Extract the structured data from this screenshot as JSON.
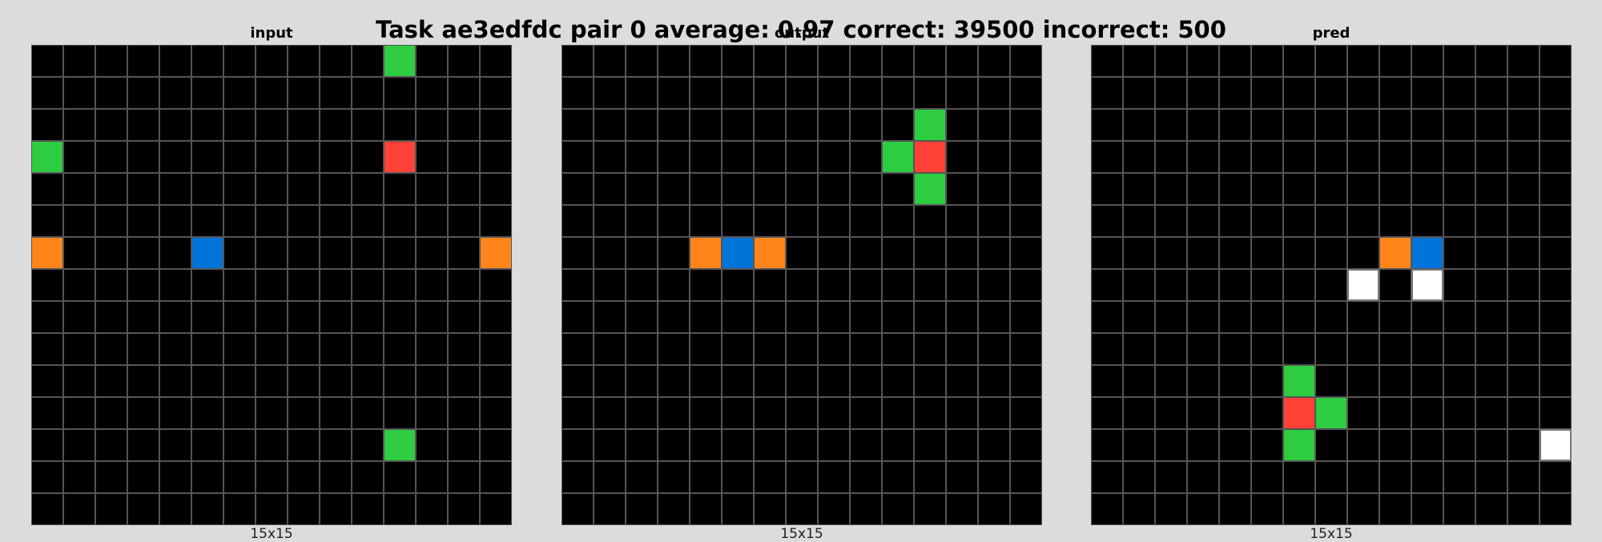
{
  "title": "Task ae3edfdc pair 0 average: 0.97 correct: 39500 incorrect: 500",
  "palette": {
    "0": "#000000",
    "1": "#0074D9",
    "2": "#FF4136",
    "3": "#2ECC40",
    "4": "#FFDC00",
    "5": "#AAAAAA",
    "6": "#F012BE",
    "7": "#FF851B",
    "8": "#7FDBFF",
    "9": "#870C25",
    "w": "#FFFFFF"
  },
  "panels": [
    {
      "key": "input",
      "label": "input",
      "size_label": "15x15",
      "grid": [
        [
          0,
          0,
          0,
          0,
          0,
          0,
          0,
          0,
          0,
          0,
          0,
          3,
          0,
          0,
          0
        ],
        [
          0,
          0,
          0,
          0,
          0,
          0,
          0,
          0,
          0,
          0,
          0,
          0,
          0,
          0,
          0
        ],
        [
          0,
          0,
          0,
          0,
          0,
          0,
          0,
          0,
          0,
          0,
          0,
          0,
          0,
          0,
          0
        ],
        [
          3,
          0,
          0,
          0,
          0,
          0,
          0,
          0,
          0,
          0,
          0,
          2,
          0,
          0,
          0
        ],
        [
          0,
          0,
          0,
          0,
          0,
          0,
          0,
          0,
          0,
          0,
          0,
          0,
          0,
          0,
          0
        ],
        [
          0,
          0,
          0,
          0,
          0,
          0,
          0,
          0,
          0,
          0,
          0,
          0,
          0,
          0,
          0
        ],
        [
          7,
          0,
          0,
          0,
          0,
          1,
          0,
          0,
          0,
          0,
          0,
          0,
          0,
          0,
          7
        ],
        [
          0,
          0,
          0,
          0,
          0,
          0,
          0,
          0,
          0,
          0,
          0,
          0,
          0,
          0,
          0
        ],
        [
          0,
          0,
          0,
          0,
          0,
          0,
          0,
          0,
          0,
          0,
          0,
          0,
          0,
          0,
          0
        ],
        [
          0,
          0,
          0,
          0,
          0,
          0,
          0,
          0,
          0,
          0,
          0,
          0,
          0,
          0,
          0
        ],
        [
          0,
          0,
          0,
          0,
          0,
          0,
          0,
          0,
          0,
          0,
          0,
          0,
          0,
          0,
          0
        ],
        [
          0,
          0,
          0,
          0,
          0,
          0,
          0,
          0,
          0,
          0,
          0,
          0,
          0,
          0,
          0
        ],
        [
          0,
          0,
          0,
          0,
          0,
          0,
          0,
          0,
          0,
          0,
          0,
          3,
          0,
          0,
          0
        ],
        [
          0,
          0,
          0,
          0,
          0,
          0,
          0,
          0,
          0,
          0,
          0,
          0,
          0,
          0,
          0
        ],
        [
          0,
          0,
          0,
          0,
          0,
          0,
          0,
          0,
          0,
          0,
          0,
          0,
          0,
          0,
          0
        ]
      ]
    },
    {
      "key": "output",
      "label": "output",
      "size_label": "15x15",
      "grid": [
        [
          0,
          0,
          0,
          0,
          0,
          0,
          0,
          0,
          0,
          0,
          0,
          0,
          0,
          0,
          0
        ],
        [
          0,
          0,
          0,
          0,
          0,
          0,
          0,
          0,
          0,
          0,
          0,
          0,
          0,
          0,
          0
        ],
        [
          0,
          0,
          0,
          0,
          0,
          0,
          0,
          0,
          0,
          0,
          0,
          3,
          0,
          0,
          0
        ],
        [
          0,
          0,
          0,
          0,
          0,
          0,
          0,
          0,
          0,
          0,
          3,
          2,
          0,
          0,
          0
        ],
        [
          0,
          0,
          0,
          0,
          0,
          0,
          0,
          0,
          0,
          0,
          0,
          3,
          0,
          0,
          0
        ],
        [
          0,
          0,
          0,
          0,
          0,
          0,
          0,
          0,
          0,
          0,
          0,
          0,
          0,
          0,
          0
        ],
        [
          0,
          0,
          0,
          0,
          7,
          1,
          7,
          0,
          0,
          0,
          0,
          0,
          0,
          0,
          0
        ],
        [
          0,
          0,
          0,
          0,
          0,
          0,
          0,
          0,
          0,
          0,
          0,
          0,
          0,
          0,
          0
        ],
        [
          0,
          0,
          0,
          0,
          0,
          0,
          0,
          0,
          0,
          0,
          0,
          0,
          0,
          0,
          0
        ],
        [
          0,
          0,
          0,
          0,
          0,
          0,
          0,
          0,
          0,
          0,
          0,
          0,
          0,
          0,
          0
        ],
        [
          0,
          0,
          0,
          0,
          0,
          0,
          0,
          0,
          0,
          0,
          0,
          0,
          0,
          0,
          0
        ],
        [
          0,
          0,
          0,
          0,
          0,
          0,
          0,
          0,
          0,
          0,
          0,
          0,
          0,
          0,
          0
        ],
        [
          0,
          0,
          0,
          0,
          0,
          0,
          0,
          0,
          0,
          0,
          0,
          0,
          0,
          0,
          0
        ],
        [
          0,
          0,
          0,
          0,
          0,
          0,
          0,
          0,
          0,
          0,
          0,
          0,
          0,
          0,
          0
        ],
        [
          0,
          0,
          0,
          0,
          0,
          0,
          0,
          0,
          0,
          0,
          0,
          0,
          0,
          0,
          0
        ]
      ]
    },
    {
      "key": "pred",
      "label": "pred",
      "size_label": "15x15",
      "grid": [
        [
          0,
          0,
          0,
          0,
          0,
          0,
          0,
          0,
          0,
          0,
          0,
          0,
          0,
          0,
          0
        ],
        [
          0,
          0,
          0,
          0,
          0,
          0,
          0,
          0,
          0,
          0,
          0,
          0,
          0,
          0,
          0
        ],
        [
          0,
          0,
          0,
          0,
          0,
          0,
          0,
          0,
          0,
          0,
          0,
          0,
          0,
          0,
          0
        ],
        [
          0,
          0,
          0,
          0,
          0,
          0,
          0,
          0,
          0,
          0,
          0,
          0,
          0,
          0,
          0
        ],
        [
          0,
          0,
          0,
          0,
          0,
          0,
          0,
          0,
          0,
          0,
          0,
          0,
          0,
          0,
          0
        ],
        [
          0,
          0,
          0,
          0,
          0,
          0,
          0,
          0,
          0,
          0,
          0,
          0,
          0,
          0,
          0
        ],
        [
          0,
          0,
          0,
          0,
          0,
          0,
          0,
          0,
          0,
          7,
          1,
          0,
          0,
          0,
          0
        ],
        [
          0,
          0,
          0,
          0,
          0,
          0,
          0,
          0,
          "w",
          0,
          "w",
          0,
          0,
          0,
          0
        ],
        [
          0,
          0,
          0,
          0,
          0,
          0,
          0,
          0,
          0,
          0,
          0,
          0,
          0,
          0,
          0
        ],
        [
          0,
          0,
          0,
          0,
          0,
          0,
          0,
          0,
          0,
          0,
          0,
          0,
          0,
          0,
          0
        ],
        [
          0,
          0,
          0,
          0,
          0,
          0,
          3,
          0,
          0,
          0,
          0,
          0,
          0,
          0,
          0
        ],
        [
          0,
          0,
          0,
          0,
          0,
          0,
          2,
          3,
          0,
          0,
          0,
          0,
          0,
          0,
          0
        ],
        [
          0,
          0,
          0,
          0,
          0,
          0,
          3,
          0,
          0,
          0,
          0,
          0,
          0,
          0,
          "w"
        ],
        [
          0,
          0,
          0,
          0,
          0,
          0,
          0,
          0,
          0,
          0,
          0,
          0,
          0,
          0,
          0
        ],
        [
          0,
          0,
          0,
          0,
          0,
          0,
          0,
          0,
          0,
          0,
          0,
          0,
          0,
          0,
          0
        ]
      ]
    }
  ]
}
